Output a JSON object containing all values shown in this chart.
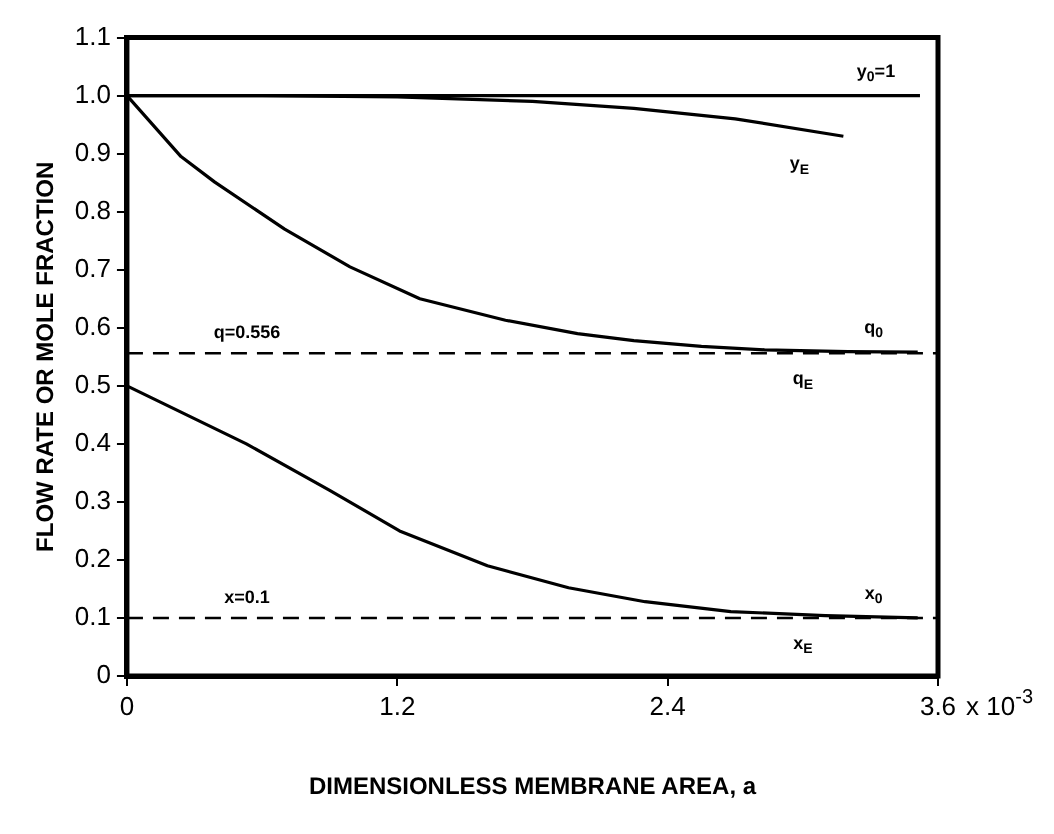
{
  "chart_data": {
    "type": "line",
    "xlabel": "DIMENSIONLESS MEMBRANE AREA, a",
    "ylabel": "FLOW RATE OR MOLE FRACTION",
    "xlim": [
      0,
      3.6
    ],
    "xticks": [
      0,
      1.2,
      2.4,
      3.6
    ],
    "ylim": [
      0,
      1.1
    ],
    "yticks": [
      0,
      0.1,
      0.2,
      0.3,
      0.4,
      0.5,
      0.6,
      0.7,
      0.8,
      0.9,
      {
        "value": 1,
        "label": "1.0"
      },
      1.1
    ],
    "grid": false,
    "legend": false,
    "marker": "none",
    "line_style": "solid",
    "series": [
      {
        "name": "y$_{0}$=1",
        "color": "#000000",
        "x": [
          0,
          3.52
        ],
        "values": [
          1,
          1
        ]
      },
      {
        "name": "y$_{E}$",
        "color": "#000000",
        "x": [
          0,
          0.6,
          1.2,
          1.8,
          2.25,
          2.7,
          3.18
        ],
        "values": [
          1,
          1,
          0.998,
          0.99,
          0.978,
          0.96,
          0.93
        ]
      },
      {
        "name": "q$_{0}$",
        "color": "#000000",
        "x": [
          0,
          0.24,
          0.39,
          0.7,
          0.99,
          1.3,
          1.68,
          2.0,
          2.25,
          2.55,
          2.83,
          3.2,
          3.51
        ],
        "values": [
          1,
          0.895,
          0.851,
          0.77,
          0.705,
          0.65,
          0.613,
          0.59,
          0.578,
          0.568,
          0.562,
          0.559,
          0.558
        ]
      },
      {
        "name": "x$_{0}$",
        "color": "#000000",
        "x": [
          0,
          0.53,
          0.9,
          1.21,
          1.6,
          1.96,
          2.3,
          2.68,
          3.1,
          3.51
        ],
        "values": [
          0.5,
          0.4,
          0.32,
          0.25,
          0.19,
          0.152,
          0.128,
          0.111,
          0.104,
          0.1
        ]
      }
    ],
    "ref_lines": [
      {
        "axis": "y",
        "value": 0.556,
        "label": "q=0.556",
        "color": "#000000",
        "line_style": "dashed"
      },
      {
        "axis": "y",
        "value": 0.1,
        "label": "x=0.1",
        "color": "#000000",
        "line_style": "dashed"
      }
    ],
    "annotations": [
      "x 10$^{-3}$",
      {
        "text": "q$_{E}$",
        "x": 3.0,
        "y": 0.556
      },
      {
        "text": "x$_{E}$",
        "x": 3.0,
        "y": 0.1
      }
    ]
  }
}
